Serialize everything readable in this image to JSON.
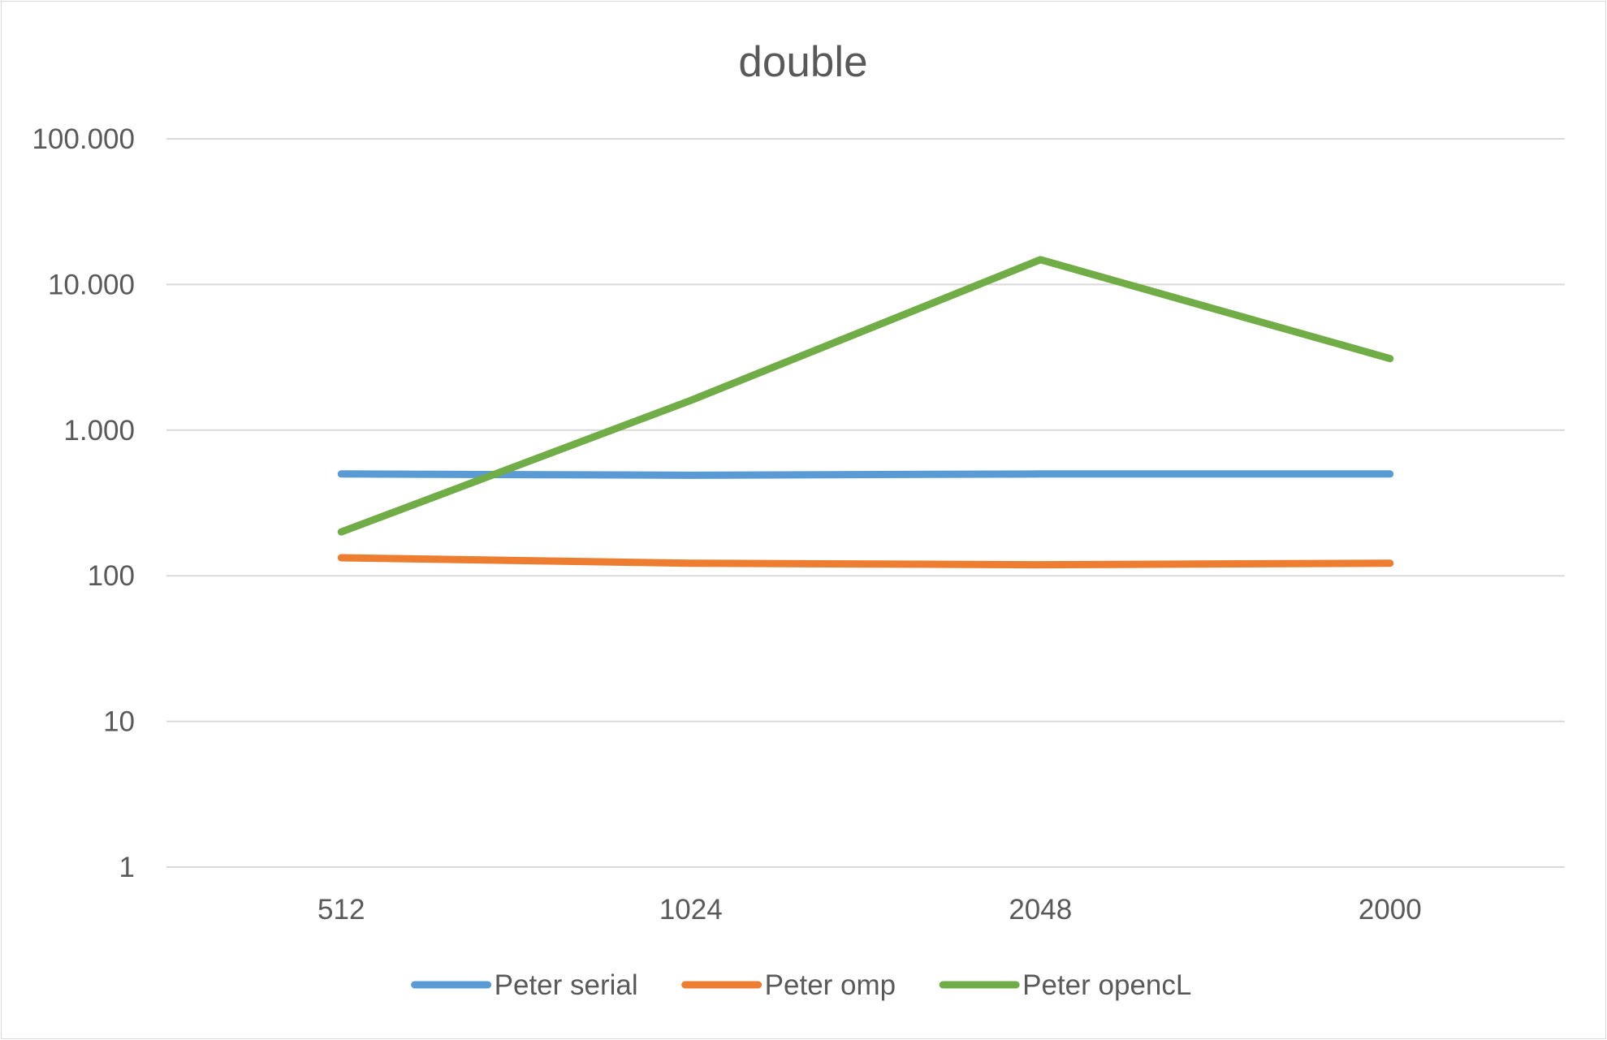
{
  "chart_data": {
    "type": "line",
    "title": "double",
    "xlabel": "",
    "ylabel": "",
    "y_scale": "log",
    "ylim": [
      1,
      100000
    ],
    "y_ticks": [
      1,
      10,
      100,
      1000,
      10000,
      100000
    ],
    "y_tick_labels": [
      "1",
      "10",
      "100",
      "1.000",
      "10.000",
      "100.000"
    ],
    "categories": [
      "512",
      "1024",
      "2048",
      "2000"
    ],
    "series": [
      {
        "name": "Peter serial",
        "color": "#5b9bd5",
        "values": [
          500,
          490,
          500,
          500
        ]
      },
      {
        "name": "Peter omp",
        "color": "#ed7d31",
        "values": [
          133,
          122,
          119,
          122
        ]
      },
      {
        "name": "Peter opencL",
        "color": "#70ad47",
        "values": [
          200,
          1600,
          14800,
          3100
        ]
      }
    ],
    "grid": true,
    "legend_position": "bottom"
  }
}
